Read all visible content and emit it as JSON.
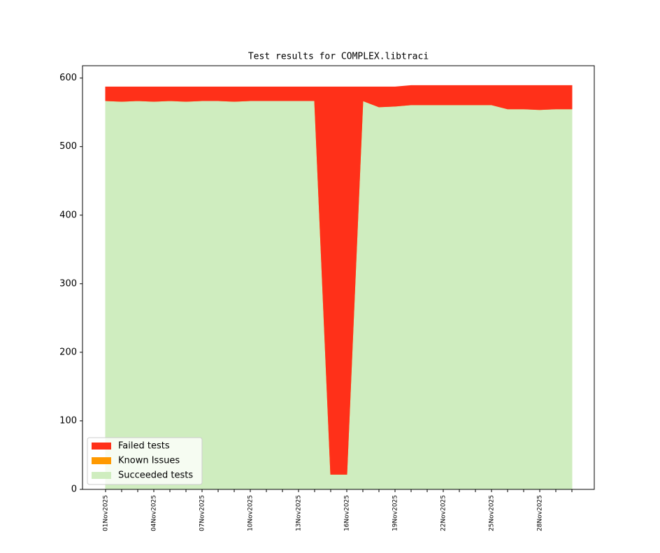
{
  "chart_data": {
    "type": "stacked_area",
    "title": "Test results for COMPLEX.libtraci",
    "categories": [
      "01Nov2025",
      null,
      null,
      "04Nov2025",
      null,
      null,
      "07Nov2025",
      null,
      null,
      "10Nov2025",
      null,
      null,
      "13Nov2025",
      null,
      null,
      "16Nov2025",
      null,
      null,
      "19Nov2025",
      null,
      null,
      "22Nov2025",
      null,
      null,
      "25Nov2025",
      null,
      null,
      "28Nov2025",
      null,
      null
    ],
    "series": [
      {
        "name": "Succeeded tests",
        "color": "#cfedbf",
        "values": [
          567,
          566,
          567,
          566,
          567,
          566,
          567,
          567,
          566,
          567,
          567,
          567,
          567,
          567,
          22,
          22,
          567,
          558,
          559,
          561,
          561,
          561,
          561,
          561,
          561,
          555,
          555,
          554,
          555,
          555
        ]
      },
      {
        "name": "Known Issues",
        "color": "#ff9900",
        "values": [
          0,
          0,
          0,
          0,
          0,
          0,
          0,
          0,
          0,
          0,
          0,
          0,
          0,
          0,
          0,
          0,
          0,
          0,
          0,
          0,
          0,
          0,
          0,
          0,
          0,
          0,
          0,
          0,
          0,
          0
        ]
      },
      {
        "name": "Failed tests",
        "color": "#ff3019",
        "values": [
          20,
          21,
          20,
          21,
          20,
          21,
          20,
          20,
          21,
          20,
          20,
          20,
          20,
          20,
          565,
          565,
          20,
          29,
          28,
          28,
          28,
          28,
          28,
          28,
          28,
          34,
          34,
          35,
          34,
          34
        ]
      }
    ],
    "ylim": [
      0,
      618
    ],
    "yticks": [
      0,
      100,
      200,
      300,
      400,
      500,
      600
    ],
    "legend": "lower left"
  }
}
